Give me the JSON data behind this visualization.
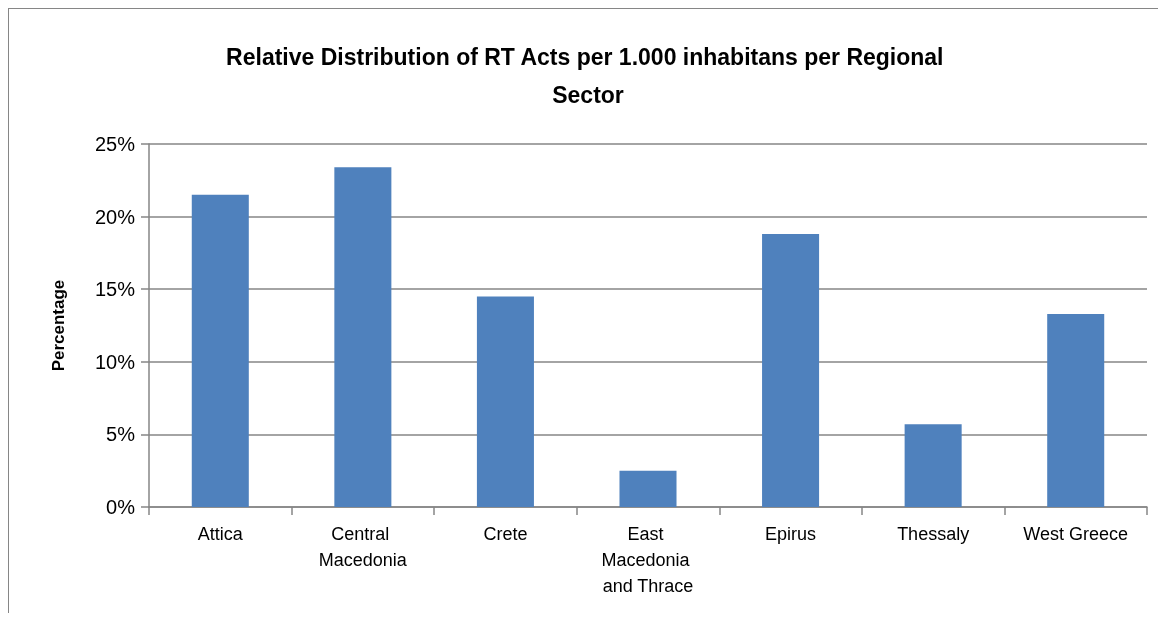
{
  "chart_data": {
    "type": "bar",
    "title": "Relative Distribution of RT Acts per 1.000 inhabitans per Regional Sector",
    "ylabel": "Percentage",
    "categories": [
      "Attica",
      "Central Macedonia",
      "Crete",
      "East Macedonia and Thrace",
      "Epirus",
      "Thessaly",
      "West Greece"
    ],
    "values": [
      21.5,
      23.4,
      14.5,
      2.5,
      18.8,
      5.7,
      13.3
    ],
    "color": "#4f81bd",
    "ylim": [
      0,
      25
    ],
    "yticks": [
      {
        "value": 0,
        "label": "0%"
      },
      {
        "value": 5,
        "label": "5%"
      },
      {
        "value": 10,
        "label": "10%"
      },
      {
        "value": 15,
        "label": "15%"
      },
      {
        "value": 20,
        "label": "20%"
      },
      {
        "value": 25,
        "label": "25%"
      }
    ],
    "grid": "y"
  }
}
